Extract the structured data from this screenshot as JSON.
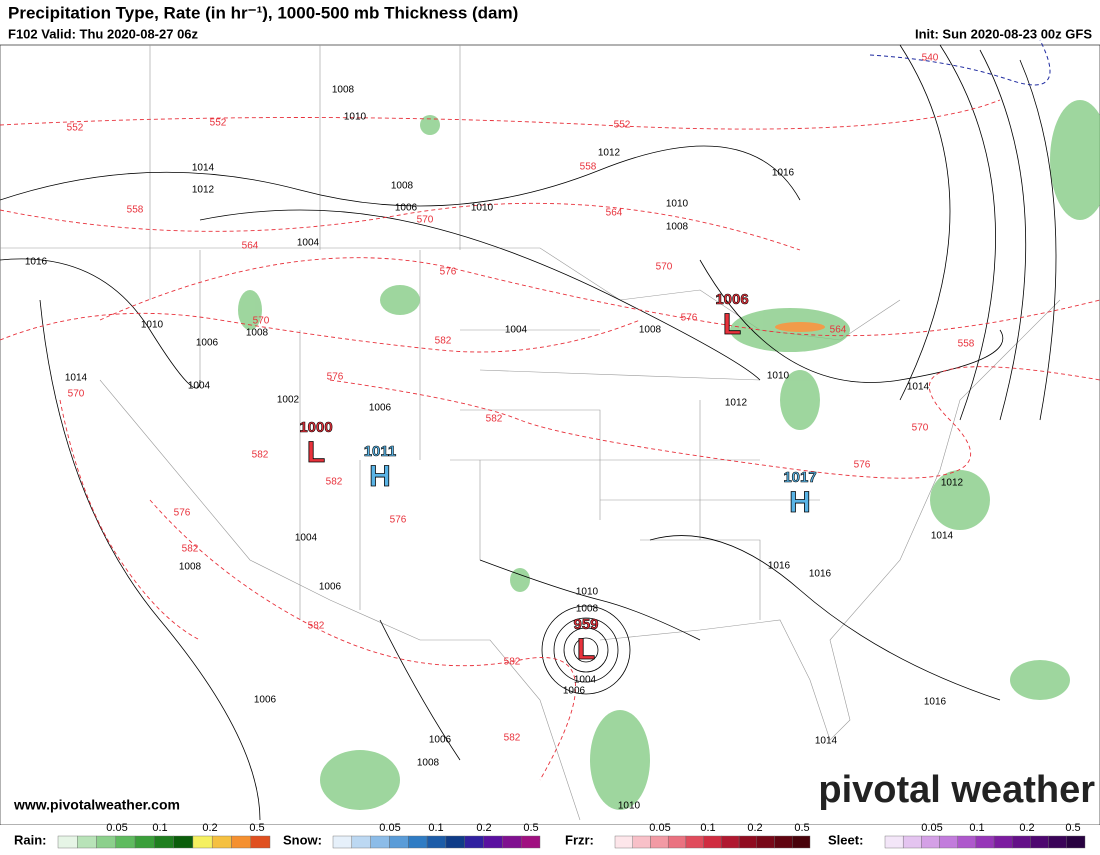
{
  "header": {
    "title": "Precipitation Type, Rate (in hr⁻¹), 1000-500 mb Thickness (dam)",
    "valid": "F102 Valid: Thu 2020-08-27 06z",
    "init": "Init: Sun 2020-08-23 00z GFS"
  },
  "centers": [
    {
      "value": "1006",
      "letter": "L"
    },
    {
      "value": "1000",
      "letter": "L"
    },
    {
      "value": "1011",
      "letter": "H"
    },
    {
      "value": "1017",
      "letter": "H"
    },
    {
      "value": "959",
      "letter": "L"
    }
  ],
  "isobar_labels": [
    "1008",
    "1010",
    "1014",
    "1012",
    "1016",
    "1010",
    "1006",
    "1004",
    "1014",
    "1008",
    "1002",
    "1004",
    "1008",
    "1006",
    "1010",
    "1012",
    "1016",
    "1010",
    "1008",
    "1004",
    "1008",
    "1006",
    "1010",
    "1012",
    "1014",
    "1012",
    "1014",
    "1016",
    "1016",
    "1004",
    "1008",
    "1006",
    "1010",
    "1008",
    "1004",
    "1006",
    "1006",
    "1006",
    "1008",
    "1014",
    "1016",
    "1010"
  ],
  "thickness_labels": [
    "552",
    "552",
    "558",
    "564",
    "570",
    "570",
    "576",
    "558",
    "552",
    "564",
    "570",
    "576",
    "582",
    "576",
    "582",
    "582",
    "582",
    "576",
    "576",
    "582",
    "582",
    "582",
    "582",
    "564",
    "558",
    "570",
    "576",
    "570",
    "540"
  ],
  "footer": {
    "url": "www.pivotalweather.com",
    "brand": "pivotal weather"
  },
  "legend": [
    {
      "name": "Rain:",
      "ticks": [
        "0.05",
        "0.1",
        "0.2",
        "0.5"
      ]
    },
    {
      "name": "Snow:",
      "ticks": [
        "0.05",
        "0.1",
        "0.2",
        "0.5"
      ]
    },
    {
      "name": "Frzr:",
      "ticks": [
        "0.05",
        "0.1",
        "0.2",
        "0.5"
      ]
    },
    {
      "name": "Sleet:",
      "ticks": [
        "0.05",
        "0.1",
        "0.2",
        "0.5"
      ]
    }
  ]
}
